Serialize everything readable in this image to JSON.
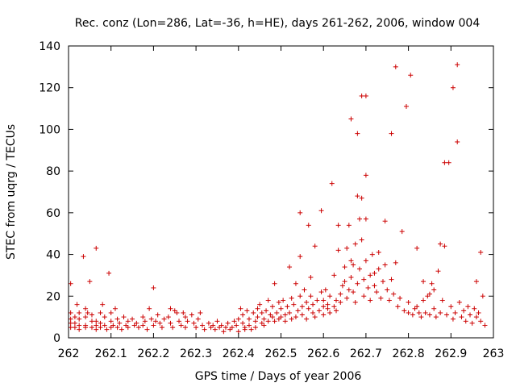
{
  "chart_data": {
    "type": "scatter",
    "title": "Rec. conz (Lon=286, Lat=-36, h=HE), days 261-262, 2006, window 004",
    "xlabel": "GPS time / Days of year 2006",
    "ylabel": "STEC from uqrg / TECUs",
    "xlim": [
      262,
      263
    ],
    "ylim": [
      0,
      140
    ],
    "x_ticks": [
      "262",
      "262.1",
      "262.2",
      "262.3",
      "262.4",
      "262.5",
      "262.6",
      "262.7",
      "262.8",
      "262.9",
      "263"
    ],
    "y_ticks": [
      "0",
      "20",
      "40",
      "60",
      "80",
      "100",
      "120",
      "140"
    ],
    "grid": false,
    "marker": "+",
    "color": "#cc0000",
    "points": [
      [
        262.005,
        26
      ],
      [
        262.005,
        12
      ],
      [
        262.005,
        9
      ],
      [
        262.005,
        7
      ],
      [
        262.005,
        5
      ],
      [
        262.015,
        10
      ],
      [
        262.015,
        7
      ],
      [
        262.015,
        5
      ],
      [
        262.02,
        16
      ],
      [
        262.025,
        12
      ],
      [
        262.025,
        9
      ],
      [
        262.025,
        6
      ],
      [
        262.025,
        4
      ],
      [
        262.035,
        39
      ],
      [
        262.04,
        14
      ],
      [
        262.04,
        10
      ],
      [
        262.04,
        6
      ],
      [
        262.04,
        5
      ],
      [
        262.045,
        12
      ],
      [
        262.05,
        27
      ],
      [
        262.055,
        11
      ],
      [
        262.055,
        8
      ],
      [
        262.055,
        5
      ],
      [
        262.065,
        43
      ],
      [
        262.065,
        8
      ],
      [
        262.065,
        6
      ],
      [
        262.065,
        4
      ],
      [
        262.075,
        12
      ],
      [
        262.075,
        7
      ],
      [
        262.075,
        5
      ],
      [
        262.08,
        16
      ],
      [
        262.085,
        10
      ],
      [
        262.085,
        6
      ],
      [
        262.09,
        4
      ],
      [
        262.095,
        31
      ],
      [
        262.1,
        8
      ],
      [
        262.1,
        5
      ],
      [
        262.1,
        12
      ],
      [
        262.105,
        6
      ],
      [
        262.11,
        14
      ],
      [
        262.115,
        9
      ],
      [
        262.115,
        5
      ],
      [
        262.12,
        7
      ],
      [
        262.125,
        4
      ],
      [
        262.13,
        10
      ],
      [
        262.135,
        6
      ],
      [
        262.14,
        8
      ],
      [
        262.14,
        5
      ],
      [
        262.15,
        9
      ],
      [
        262.155,
        6
      ],
      [
        262.16,
        7
      ],
      [
        262.165,
        5
      ],
      [
        262.175,
        10
      ],
      [
        262.175,
        6
      ],
      [
        262.18,
        8
      ],
      [
        262.185,
        4
      ],
      [
        262.19,
        14
      ],
      [
        262.195,
        9
      ],
      [
        262.2,
        24
      ],
      [
        262.2,
        6
      ],
      [
        262.205,
        8
      ],
      [
        262.21,
        11
      ],
      [
        262.215,
        7
      ],
      [
        262.22,
        5
      ],
      [
        262.225,
        9
      ],
      [
        262.235,
        10
      ],
      [
        262.24,
        14
      ],
      [
        262.24,
        7
      ],
      [
        262.245,
        5
      ],
      [
        262.25,
        13
      ],
      [
        262.255,
        12
      ],
      [
        262.26,
        8
      ],
      [
        262.265,
        6
      ],
      [
        262.27,
        12
      ],
      [
        262.275,
        10
      ],
      [
        262.275,
        5
      ],
      [
        262.28,
        8
      ],
      [
        262.29,
        11
      ],
      [
        262.295,
        7
      ],
      [
        262.3,
        5
      ],
      [
        262.305,
        9
      ],
      [
        262.31,
        12
      ],
      [
        262.315,
        6
      ],
      [
        262.32,
        4
      ],
      [
        262.33,
        7
      ],
      [
        262.335,
        5
      ],
      [
        262.34,
        6
      ],
      [
        262.345,
        4
      ],
      [
        262.35,
        8
      ],
      [
        262.355,
        5
      ],
      [
        262.36,
        6
      ],
      [
        262.365,
        3
      ],
      [
        262.37,
        5
      ],
      [
        262.375,
        7
      ],
      [
        262.38,
        4
      ],
      [
        262.385,
        5
      ],
      [
        262.39,
        8
      ],
      [
        262.395,
        6
      ],
      [
        262.4,
        3
      ],
      [
        262.4,
        9
      ],
      [
        262.405,
        14
      ],
      [
        262.41,
        11
      ],
      [
        262.41,
        7
      ],
      [
        262.415,
        5
      ],
      [
        262.415,
        4
      ],
      [
        262.42,
        13
      ],
      [
        262.425,
        9
      ],
      [
        262.425,
        6
      ],
      [
        262.43,
        4
      ],
      [
        262.435,
        12
      ],
      [
        262.44,
        8
      ],
      [
        262.44,
        5
      ],
      [
        262.445,
        14
      ],
      [
        262.445,
        10
      ],
      [
        262.45,
        16
      ],
      [
        262.455,
        7
      ],
      [
        262.455,
        12
      ],
      [
        262.46,
        6
      ],
      [
        262.46,
        9
      ],
      [
        262.465,
        13
      ],
      [
        262.47,
        8
      ],
      [
        262.47,
        18
      ],
      [
        262.475,
        11
      ],
      [
        262.48,
        10
      ],
      [
        262.48,
        15
      ],
      [
        262.485,
        8
      ],
      [
        262.485,
        26
      ],
      [
        262.49,
        12
      ],
      [
        262.495,
        9
      ],
      [
        262.495,
        17
      ],
      [
        262.5,
        10
      ],
      [
        262.5,
        14
      ],
      [
        262.505,
        18
      ],
      [
        262.51,
        11
      ],
      [
        262.51,
        8
      ],
      [
        262.515,
        15
      ],
      [
        262.52,
        34
      ],
      [
        262.52,
        12
      ],
      [
        262.525,
        9
      ],
      [
        262.525,
        19
      ],
      [
        262.53,
        16
      ],
      [
        262.535,
        26
      ],
      [
        262.535,
        10
      ],
      [
        262.54,
        13
      ],
      [
        262.545,
        39
      ],
      [
        262.545,
        60
      ],
      [
        262.545,
        20
      ],
      [
        262.55,
        11
      ],
      [
        262.55,
        15
      ],
      [
        262.555,
        23
      ],
      [
        262.56,
        9
      ],
      [
        262.56,
        17
      ],
      [
        262.565,
        54
      ],
      [
        262.565,
        14
      ],
      [
        262.57,
        29
      ],
      [
        262.57,
        20
      ],
      [
        262.575,
        12
      ],
      [
        262.575,
        16
      ],
      [
        262.58,
        44
      ],
      [
        262.58,
        10
      ],
      [
        262.585,
        18
      ],
      [
        262.59,
        13
      ],
      [
        262.595,
        61
      ],
      [
        262.595,
        22
      ],
      [
        262.6,
        15
      ],
      [
        262.6,
        11
      ],
      [
        262.6,
        18
      ],
      [
        262.605,
        23
      ],
      [
        262.61,
        14
      ],
      [
        262.61,
        16
      ],
      [
        262.615,
        12
      ],
      [
        262.615,
        20
      ],
      [
        262.62,
        74
      ],
      [
        262.625,
        30
      ],
      [
        262.625,
        15
      ],
      [
        262.63,
        18
      ],
      [
        262.63,
        13
      ],
      [
        262.635,
        54
      ],
      [
        262.635,
        42
      ],
      [
        262.64,
        21
      ],
      [
        262.64,
        17
      ],
      [
        262.645,
        25
      ],
      [
        262.65,
        34
      ],
      [
        262.65,
        27
      ],
      [
        262.655,
        43
      ],
      [
        262.655,
        19
      ],
      [
        262.66,
        54
      ],
      [
        262.66,
        23
      ],
      [
        262.665,
        105
      ],
      [
        262.665,
        37
      ],
      [
        262.665,
        29
      ],
      [
        262.67,
        35
      ],
      [
        262.67,
        22
      ],
      [
        262.675,
        45
      ],
      [
        262.675,
        17
      ],
      [
        262.68,
        98
      ],
      [
        262.68,
        68
      ],
      [
        262.68,
        26
      ],
      [
        262.685,
        57
      ],
      [
        262.685,
        33
      ],
      [
        262.69,
        116
      ],
      [
        262.69,
        67
      ],
      [
        262.69,
        47
      ],
      [
        262.695,
        28
      ],
      [
        262.695,
        20
      ],
      [
        262.7,
        116
      ],
      [
        262.7,
        78
      ],
      [
        262.7,
        57
      ],
      [
        262.7,
        37
      ],
      [
        262.705,
        24
      ],
      [
        262.71,
        30
      ],
      [
        262.71,
        18
      ],
      [
        262.715,
        40
      ],
      [
        262.72,
        31
      ],
      [
        262.72,
        25
      ],
      [
        262.725,
        22
      ],
      [
        262.73,
        41
      ],
      [
        262.73,
        33
      ],
      [
        262.735,
        19
      ],
      [
        262.74,
        27
      ],
      [
        262.745,
        56
      ],
      [
        262.745,
        35
      ],
      [
        262.75,
        23
      ],
      [
        262.755,
        18
      ],
      [
        262.76,
        98
      ],
      [
        262.76,
        28
      ],
      [
        262.765,
        21
      ],
      [
        262.77,
        130
      ],
      [
        262.77,
        36
      ],
      [
        262.775,
        15
      ],
      [
        262.78,
        19
      ],
      [
        262.785,
        51
      ],
      [
        262.79,
        13
      ],
      [
        262.795,
        111
      ],
      [
        262.8,
        12
      ],
      [
        262.8,
        17
      ],
      [
        262.805,
        126
      ],
      [
        262.81,
        11
      ],
      [
        262.815,
        14
      ],
      [
        262.82,
        43
      ],
      [
        262.82,
        15
      ],
      [
        262.825,
        12
      ],
      [
        262.83,
        10
      ],
      [
        262.835,
        27
      ],
      [
        262.835,
        18
      ],
      [
        262.84,
        12
      ],
      [
        262.845,
        20
      ],
      [
        262.85,
        21
      ],
      [
        262.85,
        11
      ],
      [
        262.855,
        26
      ],
      [
        262.86,
        23
      ],
      [
        262.86,
        14
      ],
      [
        262.865,
        10
      ],
      [
        262.87,
        32
      ],
      [
        262.875,
        45
      ],
      [
        262.875,
        12
      ],
      [
        262.88,
        18
      ],
      [
        262.885,
        44
      ],
      [
        262.885,
        84
      ],
      [
        262.89,
        11
      ],
      [
        262.895,
        84
      ],
      [
        262.9,
        15
      ],
      [
        262.905,
        120
      ],
      [
        262.905,
        9
      ],
      [
        262.91,
        12
      ],
      [
        262.915,
        94
      ],
      [
        262.915,
        131
      ],
      [
        262.92,
        17
      ],
      [
        262.925,
        10
      ],
      [
        262.93,
        13
      ],
      [
        262.935,
        8
      ],
      [
        262.94,
        15
      ],
      [
        262.945,
        11
      ],
      [
        262.95,
        7
      ],
      [
        262.955,
        14
      ],
      [
        262.96,
        27
      ],
      [
        262.96,
        10
      ],
      [
        262.965,
        12
      ],
      [
        262.97,
        41
      ],
      [
        262.97,
        8
      ],
      [
        262.975,
        20
      ],
      [
        262.98,
        6
      ]
    ]
  }
}
